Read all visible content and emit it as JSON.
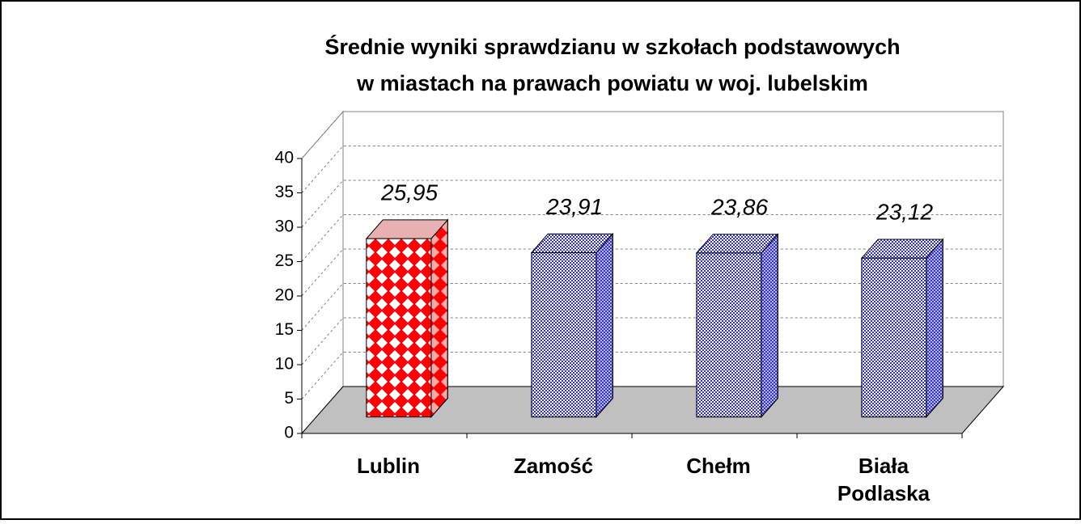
{
  "chart_data": {
    "type": "bar3d",
    "title": [
      "Średnie wyniki sprawdzianu w szkołach podstawowych",
      "w miastach na prawach powiatu w woj. lubelskim"
    ],
    "categories": [
      "Lublin",
      "Zamość",
      "Chełm",
      "Biała Podlaska"
    ],
    "values": [
      25.95,
      23.91,
      23.86,
      23.12
    ],
    "value_labels": [
      "25,95",
      "23,91",
      "23,86",
      "23,12"
    ],
    "colors": [
      "#ff0000",
      "#3333cc",
      "#3333cc",
      "#3333cc"
    ],
    "ylim": [
      0,
      40
    ],
    "yticks": [
      0,
      5,
      10,
      15,
      20,
      25,
      30,
      35,
      40
    ],
    "grid": true
  }
}
